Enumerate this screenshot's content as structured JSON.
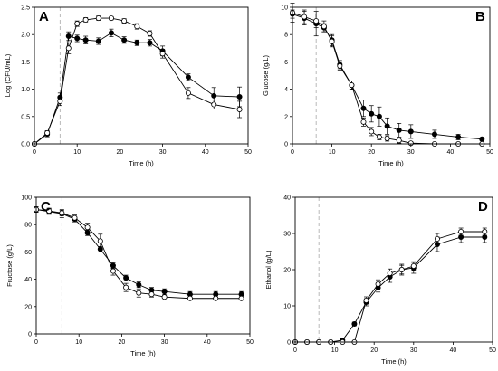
{
  "chart_data": [
    {
      "type": "line",
      "panel_label": "A",
      "xlabel": "Time (h)",
      "ylabel": "Log (CFU/mL)",
      "xlim": [
        0,
        50
      ],
      "ylim": [
        0,
        2.5
      ],
      "xticks": [
        0,
        10,
        20,
        30,
        40,
        50
      ],
      "yticks": [
        0.0,
        0.5,
        1.0,
        1.5,
        2.0,
        2.5
      ],
      "ytick_decimals": 1,
      "vline_x": 6,
      "grid": false,
      "series": [
        {
          "marker": "filled-circle",
          "x": [
            0,
            3,
            6,
            8,
            10,
            12,
            15,
            18,
            21,
            24,
            27,
            30,
            36,
            42,
            48
          ],
          "y": [
            0.0,
            0.18,
            0.85,
            1.97,
            1.93,
            1.9,
            1.88,
            2.03,
            1.9,
            1.85,
            1.85,
            1.7,
            1.22,
            0.88,
            0.86
          ],
          "err": [
            0,
            0.05,
            0.08,
            0.08,
            0.06,
            0.07,
            0.06,
            0.07,
            0.06,
            0.05,
            0.06,
            0.09,
            0.06,
            0.15,
            0.18
          ]
        },
        {
          "marker": "open-circle",
          "x": [
            0,
            3,
            6,
            8,
            10,
            12,
            15,
            18,
            21,
            24,
            27,
            30,
            36,
            42,
            48
          ],
          "y": [
            0.0,
            0.2,
            0.78,
            1.75,
            2.2,
            2.27,
            2.3,
            2.3,
            2.25,
            2.15,
            2.02,
            1.65,
            0.93,
            0.72,
            0.63
          ],
          "err": [
            0,
            0.04,
            0.08,
            0.1,
            0.05,
            0.04,
            0.04,
            0.03,
            0.04,
            0.05,
            0.05,
            0.08,
            0.1,
            0.08,
            0.15
          ]
        }
      ]
    },
    {
      "type": "line",
      "panel_label": "B",
      "xlabel": "Time (h)",
      "ylabel": "Glucose (g/L)",
      "xlim": [
        0,
        50
      ],
      "ylim": [
        0,
        10
      ],
      "xticks": [
        0,
        10,
        20,
        30,
        40,
        50
      ],
      "yticks": [
        0,
        2,
        4,
        6,
        8,
        10
      ],
      "ytick_decimals": 0,
      "vline_x": 6,
      "grid": false,
      "series": [
        {
          "marker": "filled-circle",
          "x": [
            0,
            3,
            6,
            8,
            10,
            12,
            15,
            18,
            20,
            22,
            24,
            27,
            30,
            36,
            42,
            48
          ],
          "y": [
            9.5,
            9.2,
            8.8,
            8.5,
            7.6,
            5.8,
            4.3,
            2.6,
            2.2,
            2.0,
            1.3,
            1.0,
            0.9,
            0.7,
            0.5,
            0.35
          ],
          "err": [
            0.3,
            0.5,
            0.9,
            0.3,
            0.4,
            0.3,
            0.3,
            0.6,
            0.6,
            0.7,
            0.6,
            0.5,
            0.5,
            0.3,
            0.2,
            0.1
          ]
        },
        {
          "marker": "open-circle",
          "x": [
            0,
            3,
            6,
            8,
            10,
            12,
            15,
            18,
            20,
            22,
            24,
            27,
            30,
            36,
            42,
            48
          ],
          "y": [
            9.6,
            9.3,
            9.0,
            8.6,
            7.5,
            5.7,
            4.3,
            1.6,
            0.9,
            0.5,
            0.4,
            0.25,
            0.05,
            0.0,
            0.0,
            0.0
          ],
          "err": [
            0.7,
            0.5,
            0.5,
            0.4,
            0.4,
            0.3,
            0.3,
            0.3,
            0.3,
            0.2,
            0.2,
            0.2,
            0.1,
            0.05,
            0.05,
            0.05
          ]
        }
      ]
    },
    {
      "type": "line",
      "panel_label": "C",
      "xlabel": "Time (h)",
      "ylabel": "Fructose (g/L)",
      "xlim": [
        0,
        50
      ],
      "ylim": [
        0,
        100
      ],
      "xticks": [
        0,
        10,
        20,
        30,
        40,
        50
      ],
      "yticks": [
        0,
        20,
        40,
        60,
        80,
        100
      ],
      "ytick_decimals": 0,
      "vline_x": 6,
      "grid": false,
      "series": [
        {
          "marker": "filled-circle",
          "x": [
            0,
            3,
            6,
            9,
            12,
            15,
            18,
            21,
            24,
            27,
            30,
            36,
            42,
            48
          ],
          "y": [
            91,
            89.5,
            88,
            84,
            74,
            62,
            50,
            41,
            36,
            32,
            31,
            29,
            29,
            29
          ],
          "err": [
            2,
            2,
            3,
            2,
            2,
            2,
            2,
            2,
            2,
            2,
            2,
            2,
            2,
            2
          ]
        },
        {
          "marker": "open-circle",
          "x": [
            0,
            3,
            6,
            9,
            12,
            15,
            18,
            21,
            24,
            27,
            30,
            36,
            42,
            48
          ],
          "y": [
            91,
            90,
            88.5,
            85,
            78,
            68,
            46,
            34,
            30,
            29,
            27,
            26,
            26,
            26
          ],
          "err": [
            2,
            2,
            2,
            2,
            3,
            5,
            3,
            3,
            3,
            2,
            1,
            1,
            1,
            1
          ]
        }
      ]
    },
    {
      "type": "line",
      "panel_label": "D",
      "xlabel": "Time (h)",
      "ylabel": "Ethanol (g/L)",
      "xlim": [
        0,
        50
      ],
      "ylim": [
        0,
        40
      ],
      "xticks": [
        0,
        10,
        20,
        30,
        40,
        50
      ],
      "yticks": [
        0,
        10,
        20,
        30,
        40
      ],
      "ytick_decimals": 0,
      "vline_x": 6,
      "grid": false,
      "series": [
        {
          "marker": "filled-circle",
          "x": [
            0,
            3,
            6,
            9,
            12,
            15,
            18,
            21,
            24,
            27,
            30,
            36,
            42,
            48
          ],
          "y": [
            0,
            0,
            0,
            0,
            0.5,
            5,
            11,
            15,
            18,
            20,
            20.5,
            27,
            29,
            29
          ],
          "err": [
            0,
            0,
            0,
            0,
            0.2,
            0.5,
            1,
            1.2,
            1.5,
            1.5,
            1.5,
            2,
            1.5,
            1.5
          ]
        },
        {
          "marker": "open-circle",
          "x": [
            0,
            3,
            6,
            9,
            12,
            15,
            18,
            21,
            24,
            27,
            30,
            36,
            42,
            48
          ],
          "y": [
            0,
            0,
            0,
            0,
            0,
            0,
            11.5,
            16,
            19,
            20,
            21,
            28.5,
            30.5,
            30.5
          ],
          "err": [
            0,
            0,
            0,
            0,
            0,
            0,
            1,
            1.2,
            1.2,
            1.2,
            1.2,
            1.5,
            1,
            1
          ]
        }
      ]
    }
  ]
}
